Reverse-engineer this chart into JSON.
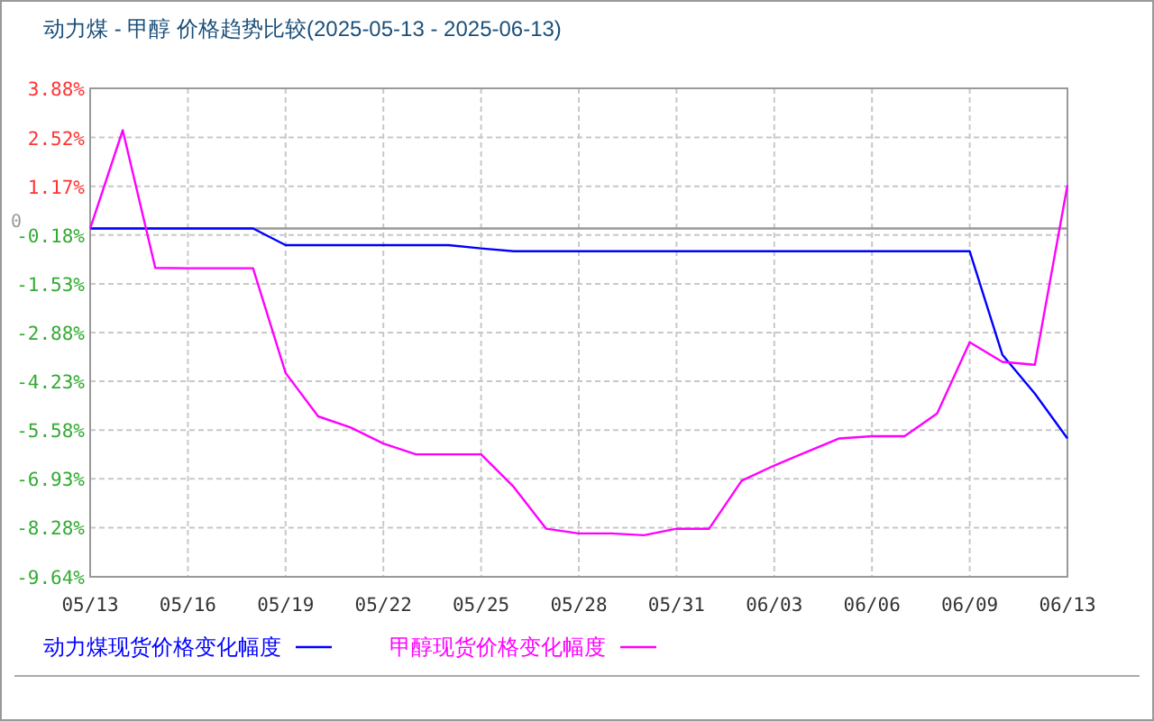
{
  "chart_data": {
    "type": "line",
    "title": "动力煤 - 甲醇 价格趋势比较(2025-05-13 - 2025-06-13)",
    "categories": [
      "05/13",
      null,
      null,
      "05/16",
      null,
      null,
      "05/19",
      null,
      null,
      "05/22",
      null,
      null,
      "05/25",
      null,
      null,
      "05/28",
      null,
      null,
      "05/31",
      null,
      null,
      "06/03",
      null,
      null,
      "06/06",
      null,
      null,
      "06/09",
      null,
      null,
      "06/13"
    ],
    "series": [
      {
        "name": "动力煤现货价格变化幅度",
        "color": "#0000ff",
        "values": [
          0,
          0,
          0,
          0,
          0,
          0,
          -0.46,
          -0.46,
          -0.46,
          -0.46,
          -0.46,
          -0.46,
          -0.55,
          -0.63,
          -0.63,
          -0.63,
          -0.63,
          -0.63,
          -0.63,
          -0.63,
          -0.63,
          -0.63,
          -0.63,
          -0.63,
          -0.63,
          -0.63,
          -0.63,
          -0.63,
          -3.49,
          -4.57,
          -5.81
        ]
      },
      {
        "name": "甲醇现货价格变化幅度",
        "color": "#ff00ff",
        "values": [
          0,
          2.72,
          -1.09,
          -1.1,
          -1.1,
          -1.1,
          -4.0,
          -5.2,
          -5.51,
          -5.95,
          -6.25,
          -6.25,
          -6.25,
          -7.15,
          -8.31,
          -8.44,
          -8.44,
          -8.49,
          -8.31,
          -8.31,
          -6.98,
          -6.56,
          -6.18,
          -5.81,
          -5.75,
          -5.75,
          -5.12,
          -3.15,
          -3.69,
          -3.77,
          1.2
        ]
      }
    ],
    "ylim": [
      -9.64,
      3.88
    ],
    "yticks": [
      {
        "value": 3.88,
        "label": "3.88%"
      },
      {
        "value": 2.52,
        "label": "2.52%"
      },
      {
        "value": 1.17,
        "label": "1.17%"
      },
      {
        "value": -0.18,
        "label": "-0.18%"
      },
      {
        "value": -1.53,
        "label": "-1.53%"
      },
      {
        "value": -2.88,
        "label": "-2.88%"
      },
      {
        "value": -4.23,
        "label": "-4.23%"
      },
      {
        "value": -5.58,
        "label": "-5.58%"
      },
      {
        "value": -6.93,
        "label": "-6.93%"
      },
      {
        "value": -8.28,
        "label": "-8.28%"
      },
      {
        "value": -9.64,
        "label": "-9.64%"
      }
    ],
    "ref_lines": [
      {
        "axis": "y",
        "value": 0,
        "label": "0",
        "color": "#999999"
      }
    ],
    "grid": true,
    "legend": "bottom"
  }
}
